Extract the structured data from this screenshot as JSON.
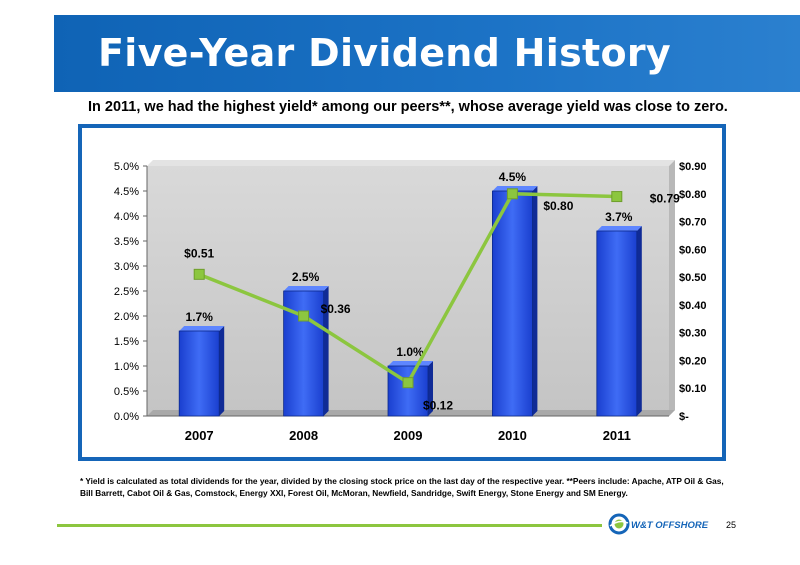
{
  "slide": {
    "title": "Five-Year Dividend History",
    "subtitle": "In 2011, we had the highest yield* among our peers**, whose average yield was close to zero.",
    "footnote": "* Yield is calculated as total dividends for the year, divided by the closing stock price on the last day of the respective year.  **Peers include: Apache, ATP Oil & Gas, Bill Barrett, Cabot Oil & Gas, Comstock, Energy XXI, Forest Oil, McMoran, Newfield, Sandridge, Swift Energy, Stone Energy and SM Energy.",
    "page_number": "25",
    "logo_text": "W&T OFFSHORE"
  },
  "colors": {
    "title_band": "#1668bd",
    "bar": "#1d46e0",
    "line": "#8cc63f",
    "frame": "#1565b8",
    "plot_bg": "#cfcfcf",
    "footer_line": "#8cc63f"
  },
  "chart_data": {
    "type": "bar",
    "categories": [
      "2007",
      "2008",
      "2009",
      "2010",
      "2011"
    ],
    "series": [
      {
        "type": "bar",
        "axis": "left",
        "values": [
          1.7,
          2.5,
          1.0,
          4.5,
          3.7
        ],
        "labels": [
          "1.7%",
          "2.5%",
          "1.0%",
          "4.5%",
          "3.7%"
        ]
      },
      {
        "type": "line",
        "axis": "right",
        "values": [
          0.51,
          0.36,
          0.12,
          0.8,
          0.79
        ],
        "labels": [
          "$0.51",
          "$0.36",
          "$0.12",
          "$0.80",
          "$0.79"
        ]
      }
    ],
    "y_left": {
      "min": 0,
      "max": 5,
      "ticks": [
        0,
        0.5,
        1,
        1.5,
        2,
        2.5,
        3,
        3.5,
        4,
        4.5,
        5
      ],
      "tick_labels": [
        "0.0%",
        "0.5%",
        "1.0%",
        "1.5%",
        "2.0%",
        "2.5%",
        "3.0%",
        "3.5%",
        "4.0%",
        "4.5%",
        "5.0%"
      ]
    },
    "y_right": {
      "min": 0,
      "max": 0.9,
      "ticks": [
        0,
        0.1,
        0.2,
        0.3,
        0.4,
        0.5,
        0.6,
        0.7,
        0.8,
        0.9
      ],
      "tick_labels": [
        "$-",
        "$0.10",
        "$0.20",
        "$0.30",
        "$0.40",
        "$0.50",
        "$0.60",
        "$0.70",
        "$0.80",
        "$0.90"
      ]
    },
    "grid": false,
    "legend": "none"
  }
}
